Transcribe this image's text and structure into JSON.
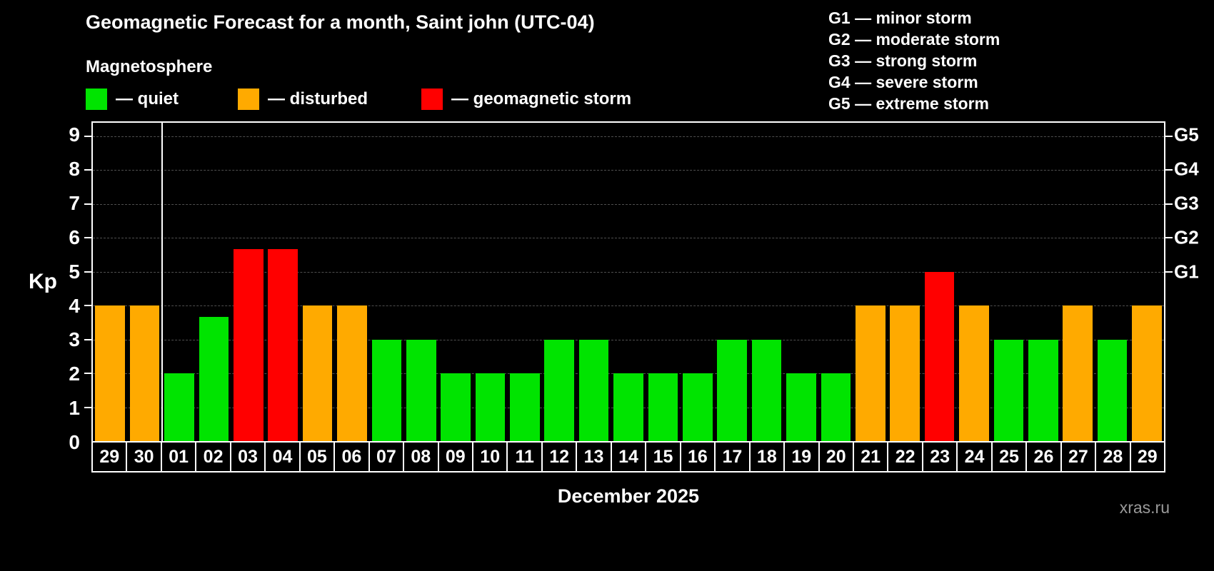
{
  "title": "Geomagnetic Forecast for a month, Saint john (UTC-04)",
  "subtitle": "Magnetosphere",
  "legend": {
    "quiet": {
      "label": "— quiet",
      "color": "#00e400"
    },
    "disturbed": {
      "label": "— disturbed",
      "color": "#ffaa00"
    },
    "storm": {
      "label": "— geomagnetic storm",
      "color": "#ff0000"
    }
  },
  "g_legend": [
    "G1 — minor storm",
    "G2 — moderate storm",
    "G3 — strong storm",
    "G4 — severe storm",
    "G5 — extreme storm"
  ],
  "chart_data": {
    "type": "bar",
    "title": "Geomagnetic Forecast for a month, Saint john (UTC-04)",
    "xlabel": "December 2025",
    "ylabel": "Kp",
    "ylim": [
      0,
      9.4
    ],
    "yticks": [
      0,
      1,
      2,
      3,
      4,
      5,
      6,
      7,
      8,
      9
    ],
    "right_axis_ticks": [
      {
        "label": "G1",
        "value": 5
      },
      {
        "label": "G2",
        "value": 6
      },
      {
        "label": "G3",
        "value": 7
      },
      {
        "label": "G4",
        "value": 8
      },
      {
        "label": "G5",
        "value": 9
      }
    ],
    "grid": true,
    "legend_position": "top",
    "month_boundary_index": 2,
    "categories": [
      "29",
      "30",
      "01",
      "02",
      "03",
      "04",
      "05",
      "06",
      "07",
      "08",
      "09",
      "10",
      "11",
      "12",
      "13",
      "14",
      "15",
      "16",
      "17",
      "18",
      "19",
      "20",
      "21",
      "22",
      "23",
      "24",
      "25",
      "26",
      "27",
      "28",
      "29"
    ],
    "values": [
      4,
      4,
      2,
      3.67,
      5.67,
      5.67,
      4,
      4,
      3,
      3,
      2,
      2,
      2,
      3,
      3,
      2,
      2,
      2,
      3,
      3,
      2,
      2,
      4,
      4,
      5,
      4,
      3,
      3,
      4,
      3,
      4
    ],
    "colors": [
      "disturbed",
      "disturbed",
      "quiet",
      "quiet",
      "storm",
      "storm",
      "disturbed",
      "disturbed",
      "quiet",
      "quiet",
      "quiet",
      "quiet",
      "quiet",
      "quiet",
      "quiet",
      "quiet",
      "quiet",
      "quiet",
      "quiet",
      "quiet",
      "quiet",
      "quiet",
      "disturbed",
      "disturbed",
      "storm",
      "disturbed",
      "quiet",
      "quiet",
      "disturbed",
      "quiet",
      "disturbed"
    ]
  },
  "footer": {
    "watermark": "xras.ru"
  }
}
